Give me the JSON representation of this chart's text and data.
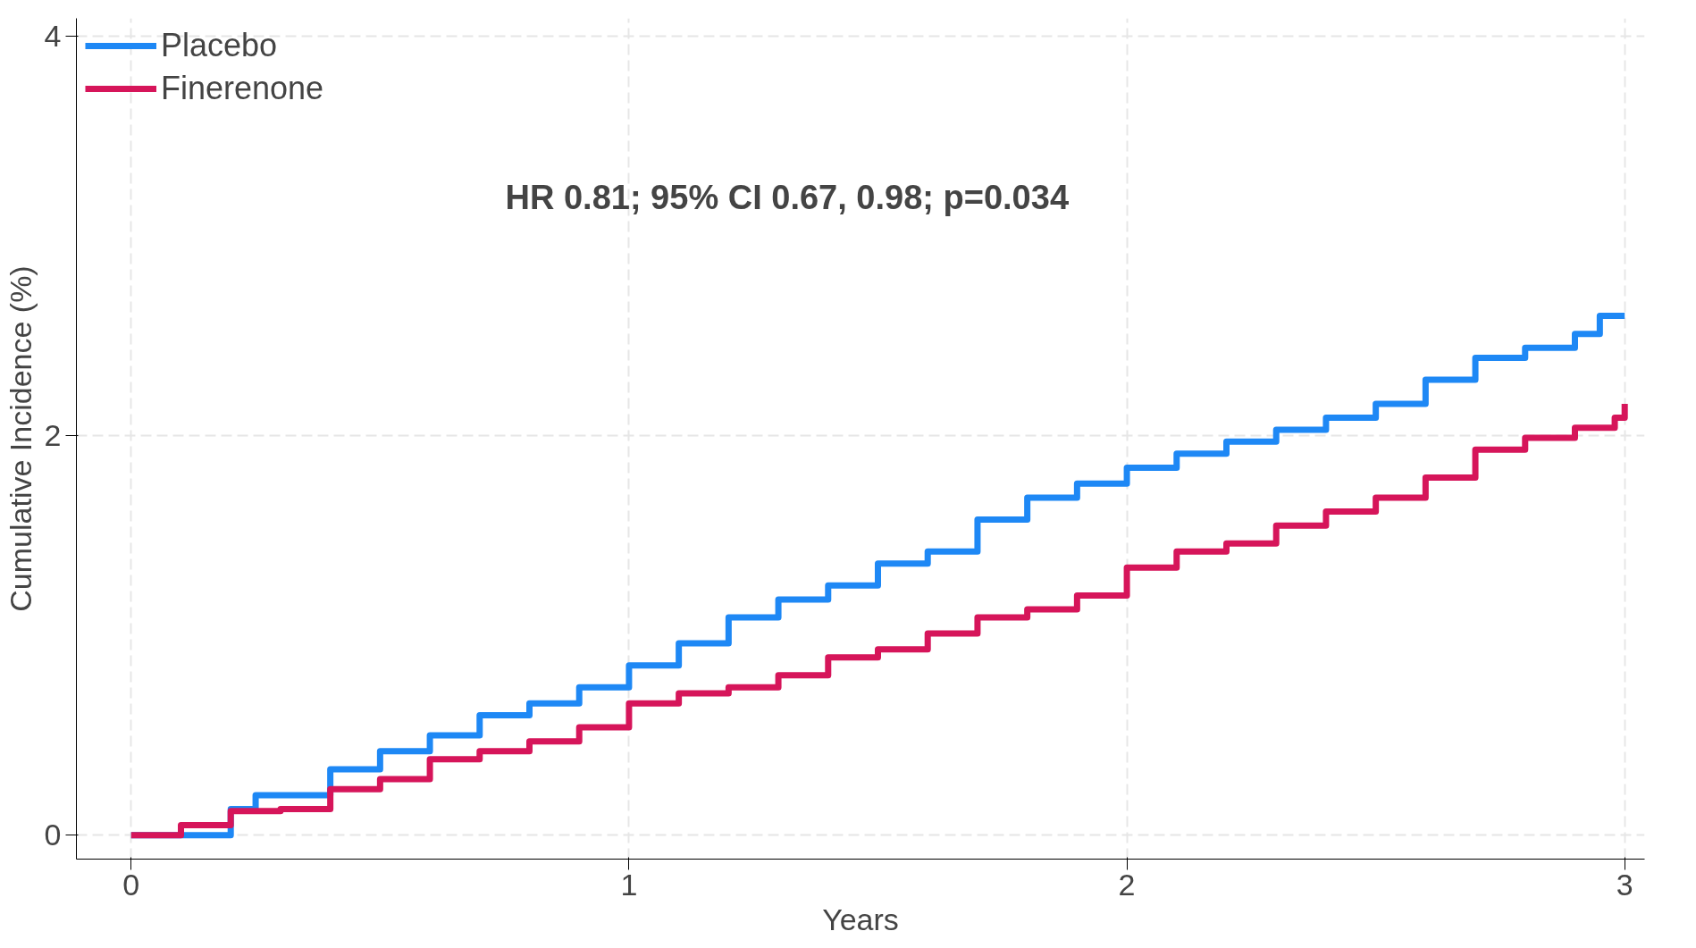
{
  "chart_data": {
    "type": "step",
    "xlabel": "Years",
    "ylabel": "Cumulative Incidence (%)",
    "annotations": [
      "HR 0.81; 95% CI 0.67, 0.98; p=0.034"
    ],
    "xlim": [
      -0.11,
      3.04
    ],
    "ylim": [
      -0.12,
      4.09
    ],
    "xticks": [
      0,
      1,
      2,
      3
    ],
    "yticks": [
      0,
      2,
      4
    ],
    "grid": true,
    "legend": "top left",
    "line_style": "solid",
    "marker": "none",
    "series": [
      {
        "name": "Placebo",
        "color": "#1e88f5",
        "x": [
          0,
          0.2,
          0.25,
          0.4,
          0.5,
          0.6,
          0.7,
          0.8,
          0.9,
          1.0,
          1.1,
          1.2,
          1.3,
          1.4,
          1.5,
          1.6,
          1.7,
          1.8,
          1.9,
          2.0,
          2.1,
          2.2,
          2.3,
          2.4,
          2.5,
          2.6,
          2.7,
          2.8,
          2.9,
          2.95,
          3.0
        ],
        "values": [
          0,
          0.13,
          0.2,
          0.33,
          0.42,
          0.5,
          0.6,
          0.66,
          0.74,
          0.85,
          0.96,
          1.09,
          1.18,
          1.25,
          1.36,
          1.42,
          1.58,
          1.69,
          1.76,
          1.84,
          1.91,
          1.97,
          2.03,
          2.09,
          2.16,
          2.28,
          2.39,
          2.44,
          2.51,
          2.6,
          2.6
        ]
      },
      {
        "name": "Finerenone",
        "color": "#d6155a",
        "x": [
          0,
          0.1,
          0.2,
          0.3,
          0.4,
          0.5,
          0.6,
          0.7,
          0.8,
          0.9,
          1.0,
          1.1,
          1.2,
          1.3,
          1.4,
          1.5,
          1.6,
          1.7,
          1.8,
          1.9,
          2.0,
          2.1,
          2.2,
          2.3,
          2.4,
          2.5,
          2.6,
          2.7,
          2.8,
          2.9,
          2.98,
          3.0
        ],
        "values": [
          0,
          0.05,
          0.12,
          0.13,
          0.23,
          0.28,
          0.38,
          0.42,
          0.47,
          0.54,
          0.66,
          0.71,
          0.74,
          0.8,
          0.89,
          0.93,
          1.01,
          1.09,
          1.13,
          1.2,
          1.34,
          1.42,
          1.46,
          1.55,
          1.62,
          1.69,
          1.79,
          1.93,
          1.99,
          2.04,
          2.09,
          2.16
        ]
      }
    ]
  }
}
